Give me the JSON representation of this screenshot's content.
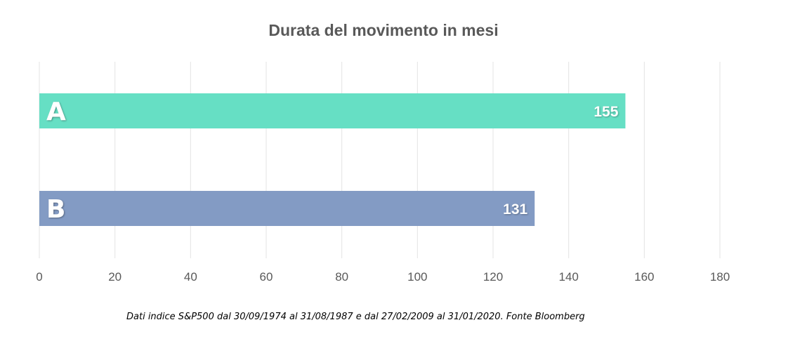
{
  "chart_data": {
    "type": "bar",
    "orientation": "horizontal",
    "title": "Durata del movimento in mesi",
    "categories": [
      "A",
      "B"
    ],
    "values": [
      155,
      131
    ],
    "xlim": [
      0,
      180
    ],
    "x_ticks": [
      "0",
      "20",
      "40",
      "60",
      "80",
      "100",
      "120",
      "140",
      "160",
      "180"
    ],
    "data_labels": [
      "155",
      "131"
    ],
    "grid": "vertical",
    "colors": [
      "#66dfc4",
      "#839bc4"
    ],
    "footnote": "Dati indice S&P500 dal 30/09/1974 al 31/08/1987 e dal 27/02/2009 al 31/01/2020. Fonte Bloomberg"
  }
}
